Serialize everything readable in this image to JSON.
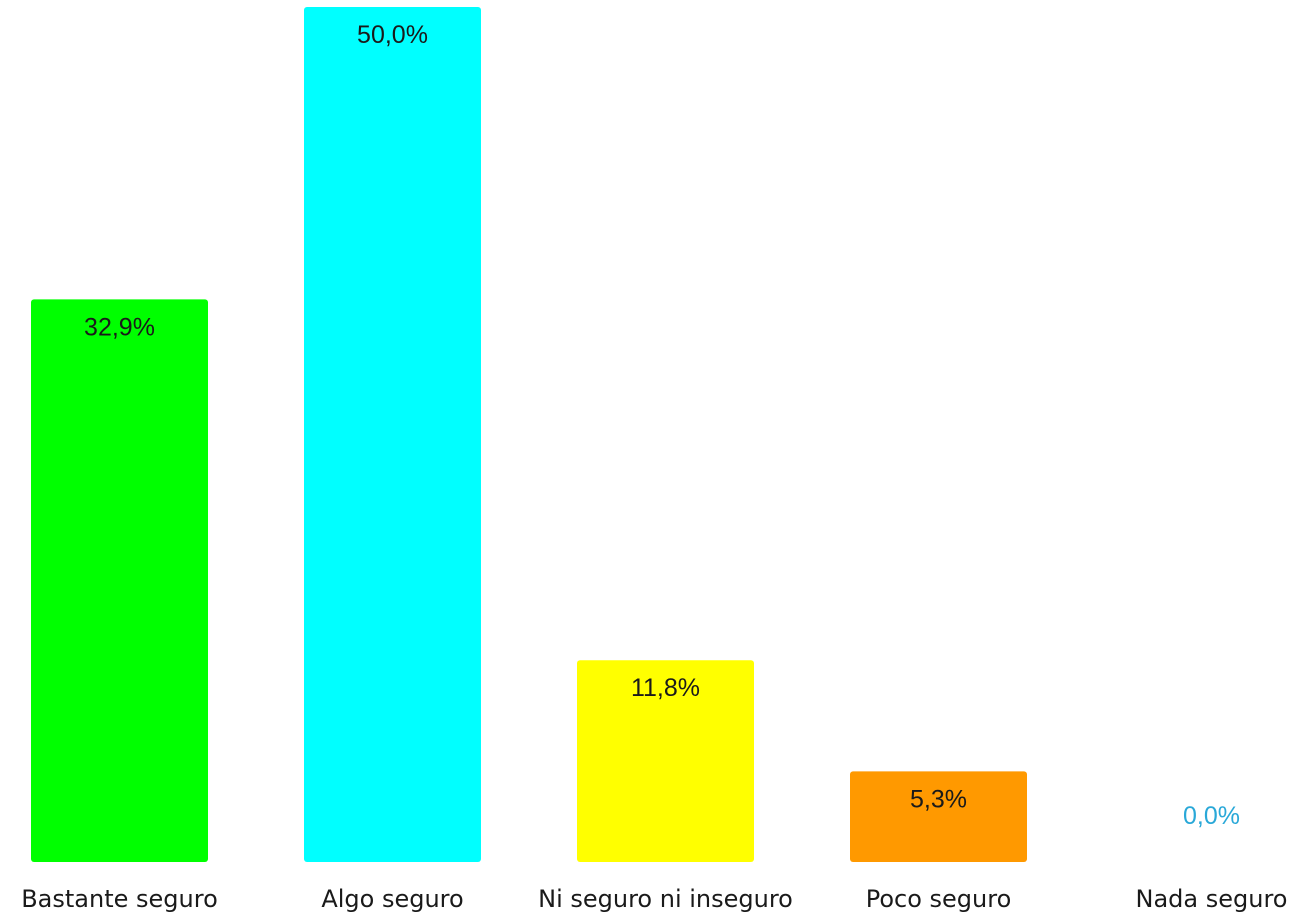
{
  "chart_data": {
    "type": "bar",
    "categories": [
      "Bastante seguro",
      "Algo seguro",
      "Ni seguro ni inseguro",
      "Poco seguro",
      "Nada seguro"
    ],
    "values": [
      32.9,
      50.0,
      11.8,
      5.3,
      0.0
    ],
    "value_labels": [
      "32,9%",
      "50,0%",
      "11,8%",
      "5,3%",
      "0,0%"
    ],
    "colors": [
      "#00ff00",
      "#00ffff",
      "#ffff00",
      "#ff9900",
      "#00ffff"
    ],
    "label_colors": [
      "#1a1a1a",
      "#1a1a1a",
      "#1a1a1a",
      "#1a1a1a",
      "#29a8d8"
    ],
    "title": "",
    "xlabel": "",
    "ylabel": "",
    "ylim": [
      0,
      50
    ],
    "grid": false,
    "legend": "none"
  }
}
